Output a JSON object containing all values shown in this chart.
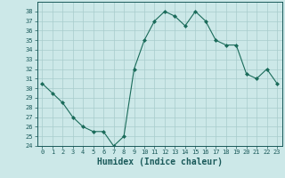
{
  "x": [
    0,
    1,
    2,
    3,
    4,
    5,
    6,
    7,
    8,
    9,
    10,
    11,
    12,
    13,
    14,
    15,
    16,
    17,
    18,
    19,
    20,
    21,
    22,
    23
  ],
  "y": [
    30.5,
    29.5,
    28.5,
    27.0,
    26.0,
    25.5,
    25.5,
    24.0,
    25.0,
    32.0,
    35.0,
    37.0,
    38.0,
    37.5,
    36.5,
    38.0,
    37.0,
    35.0,
    34.5,
    34.5,
    31.5,
    31.0,
    32.0,
    30.5
  ],
  "line_color": "#1a6b5a",
  "marker": "D",
  "marker_size": 2,
  "bg_color": "#cce8e8",
  "grid_color": "#a8cccc",
  "xlabel": "Humidex (Indice chaleur)",
  "xlabel_fontsize": 7,
  "ylim": [
    24,
    39
  ],
  "xlim": [
    -0.5,
    23.5
  ],
  "yticks": [
    24,
    25,
    26,
    27,
    28,
    29,
    30,
    31,
    32,
    33,
    34,
    35,
    36,
    37,
    38
  ],
  "xticks": [
    0,
    1,
    2,
    3,
    4,
    5,
    6,
    7,
    8,
    9,
    10,
    11,
    12,
    13,
    14,
    15,
    16,
    17,
    18,
    19,
    20,
    21,
    22,
    23
  ],
  "tick_fontsize": 5,
  "tick_color": "#1a5a5a",
  "spine_color": "#1a5a5a"
}
